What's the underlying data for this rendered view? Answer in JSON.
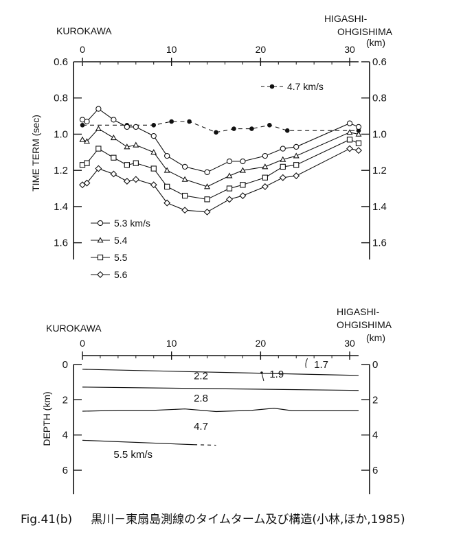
{
  "caption": {
    "figure_label": "Fig.41(b)",
    "text": "黒川－東扇島測線のタイムターム及び構造(小林,ほか,1985)"
  },
  "chart_data": [
    {
      "type": "line",
      "left_label": "KUROKAWA",
      "right_label_line1": "HIGASHI-",
      "right_label_line2": "OHGISHIMA",
      "x_unit": "(km)",
      "xlabel": "",
      "ylabel": "TIME TERM (sec)",
      "xlim": [
        0,
        31
      ],
      "ylim": [
        0.6,
        1.7
      ],
      "y_reversed": true,
      "x_ticks": [
        0,
        10,
        20,
        30
      ],
      "y_ticks": [
        0.6,
        0.8,
        1.0,
        1.2,
        1.4,
        1.6
      ],
      "y_tick_labels": [
        "0.6",
        "0.8",
        "1.0",
        "1.2",
        "1.4",
        "1.6"
      ],
      "right_tick_labels": [
        "0.6",
        "0.8",
        "1.0",
        "1.2",
        "1.4",
        "1.6"
      ],
      "series": [
        {
          "name": "4.7 km/s",
          "marker": "filled-circle",
          "dashed": true,
          "x": [
            0,
            5,
            8,
            10,
            12,
            15,
            17,
            19,
            21,
            23,
            31
          ],
          "y": [
            0.95,
            0.95,
            0.95,
            0.93,
            0.93,
            0.99,
            0.97,
            0.97,
            0.95,
            0.98,
            0.98
          ]
        },
        {
          "name": "5.3 km/s",
          "marker": "circle",
          "dashed": false,
          "x": [
            0,
            0.5,
            1.8,
            3.5,
            5,
            6,
            8,
            9.5,
            11.5,
            14,
            16.5,
            18,
            20.5,
            22.5,
            24,
            30,
            31
          ],
          "y": [
            0.92,
            0.93,
            0.86,
            0.92,
            0.96,
            0.96,
            1.01,
            1.12,
            1.18,
            1.21,
            1.15,
            1.15,
            1.12,
            1.08,
            1.07,
            0.94,
            0.96
          ]
        },
        {
          "name": "5.4",
          "marker": "triangle",
          "dashed": false,
          "x": [
            0,
            0.5,
            1.8,
            3.5,
            5,
            6,
            8,
            9.5,
            11.5,
            14,
            16.5,
            18,
            20.5,
            22.5,
            24,
            30,
            31
          ],
          "y": [
            1.03,
            1.04,
            0.97,
            1.02,
            1.07,
            1.06,
            1.1,
            1.2,
            1.25,
            1.29,
            1.23,
            1.2,
            1.18,
            1.14,
            1.12,
            0.99,
            1.0
          ]
        },
        {
          "name": "5.5",
          "marker": "square",
          "dashed": false,
          "x": [
            0,
            0.5,
            1.8,
            3.5,
            5,
            6,
            8,
            9.5,
            11.5,
            14,
            16.5,
            18,
            20.5,
            22.5,
            24,
            30,
            31
          ],
          "y": [
            1.17,
            1.16,
            1.08,
            1.13,
            1.17,
            1.16,
            1.19,
            1.29,
            1.34,
            1.36,
            1.3,
            1.28,
            1.24,
            1.18,
            1.17,
            1.03,
            1.05
          ]
        },
        {
          "name": "5.6",
          "marker": "diamond",
          "dashed": false,
          "x": [
            0,
            0.5,
            1.8,
            3.5,
            5,
            6,
            8,
            9.5,
            11.5,
            14,
            16.5,
            18,
            20.5,
            22.5,
            24,
            30,
            31
          ],
          "y": [
            1.28,
            1.27,
            1.19,
            1.22,
            1.26,
            1.25,
            1.28,
            1.38,
            1.42,
            1.43,
            1.36,
            1.34,
            1.29,
            1.24,
            1.23,
            1.08,
            1.09
          ]
        }
      ]
    },
    {
      "type": "line",
      "left_label": "KUROKAWA",
      "right_label_line1": "HIGASHI-",
      "right_label_line2": "OHGISHIMA",
      "x_unit": "(km)",
      "xlabel": "",
      "ylabel": "DEPTH (km)",
      "xlim": [
        0,
        31
      ],
      "ylim": [
        0,
        7
      ],
      "y_reversed": true,
      "x_ticks": [
        0,
        10,
        20,
        30
      ],
      "y_ticks": [
        0,
        2,
        4,
        6
      ],
      "y_tick_labels": [
        "0",
        "2",
        "4",
        "6"
      ],
      "right_tick_labels": [
        "0",
        "2",
        "4",
        "6"
      ],
      "boundaries": [
        {
          "x": [
            0,
            31
          ],
          "y": [
            0.27,
            0.62
          ]
        },
        {
          "x": [
            0,
            31
          ],
          "y": [
            1.28,
            1.47
          ]
        },
        {
          "x": [
            0,
            4,
            8,
            11.5,
            15,
            19,
            21.5,
            23.5,
            27,
            31
          ],
          "y": [
            2.65,
            2.6,
            2.6,
            2.52,
            2.67,
            2.6,
            2.48,
            2.62,
            2.62,
            2.62
          ]
        },
        {
          "x": [
            0,
            12.5
          ],
          "y": [
            4.3,
            4.55
          ]
        },
        {
          "x": [
            12.5,
            15
          ],
          "y": [
            4.55,
            4.58
          ],
          "dashed": true
        }
      ],
      "velocity_labels": [
        "1.7",
        "1.9",
        "2.2",
        "2.8",
        "4.7",
        "5.5 km/s"
      ],
      "velocity_label_positions": [
        [
          26,
          0.0
        ],
        [
          21,
          0.55
        ],
        [
          12.5,
          0.65
        ],
        [
          12.5,
          1.9
        ],
        [
          12.5,
          3.5
        ],
        [
          3.5,
          5.1
        ]
      ]
    }
  ]
}
